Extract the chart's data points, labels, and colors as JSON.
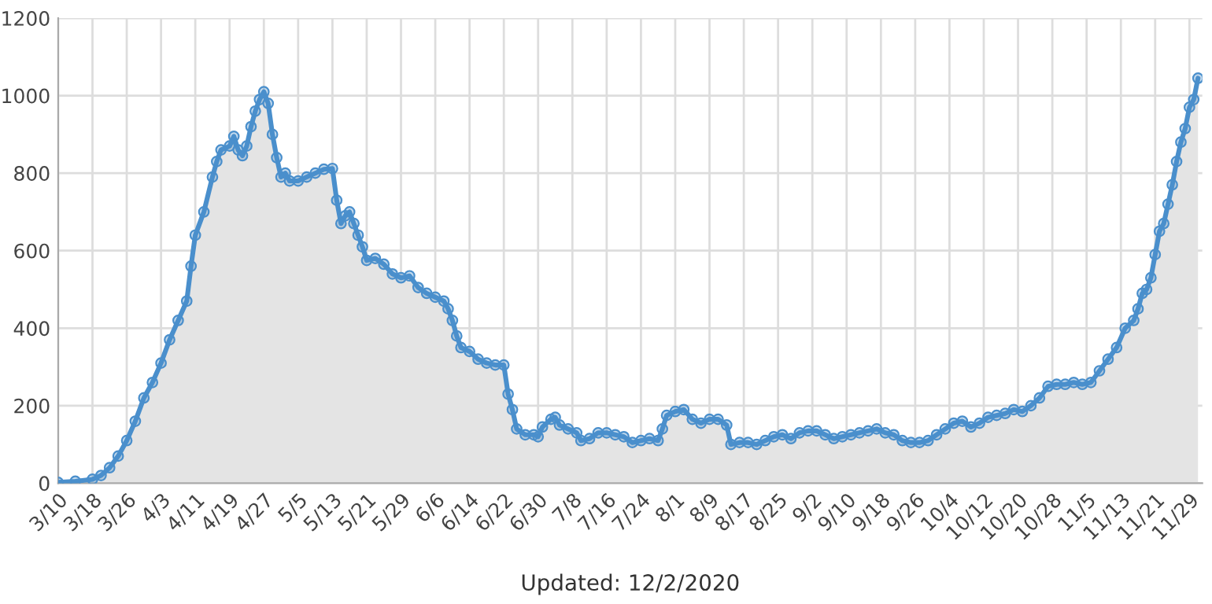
{
  "chart_data": {
    "type": "area",
    "x": [
      "2020-03-10",
      "2020-03-14",
      "2020-03-18",
      "2020-03-20",
      "2020-03-22",
      "2020-03-24",
      "2020-03-26",
      "2020-03-28",
      "2020-03-30",
      "2020-04-01",
      "2020-04-03",
      "2020-04-05",
      "2020-04-07",
      "2020-04-09",
      "2020-04-10",
      "2020-04-11",
      "2020-04-13",
      "2020-04-15",
      "2020-04-16",
      "2020-04-17",
      "2020-04-19",
      "2020-04-20",
      "2020-04-21",
      "2020-04-22",
      "2020-04-23",
      "2020-04-24",
      "2020-04-25",
      "2020-04-26",
      "2020-04-27",
      "2020-04-28",
      "2020-04-29",
      "2020-04-30",
      "2020-05-01",
      "2020-05-02",
      "2020-05-03",
      "2020-05-05",
      "2020-05-07",
      "2020-05-09",
      "2020-05-11",
      "2020-05-13",
      "2020-05-14",
      "2020-05-15",
      "2020-05-16",
      "2020-05-17",
      "2020-05-18",
      "2020-05-19",
      "2020-05-20",
      "2020-05-21",
      "2020-05-23",
      "2020-05-25",
      "2020-05-27",
      "2020-05-29",
      "2020-05-31",
      "2020-06-02",
      "2020-06-04",
      "2020-06-06",
      "2020-06-08",
      "2020-06-09",
      "2020-06-10",
      "2020-06-11",
      "2020-06-12",
      "2020-06-14",
      "2020-06-16",
      "2020-06-18",
      "2020-06-20",
      "2020-06-22",
      "2020-06-23",
      "2020-06-24",
      "2020-06-25",
      "2020-06-27",
      "2020-06-29",
      "2020-06-30",
      "2020-07-01",
      "2020-07-03",
      "2020-07-04",
      "2020-07-05",
      "2020-07-07",
      "2020-07-09",
      "2020-07-10",
      "2020-07-12",
      "2020-07-14",
      "2020-07-16",
      "2020-07-18",
      "2020-07-20",
      "2020-07-22",
      "2020-07-24",
      "2020-07-26",
      "2020-07-28",
      "2020-07-29",
      "2020-07-30",
      "2020-08-01",
      "2020-08-03",
      "2020-08-05",
      "2020-08-07",
      "2020-08-09",
      "2020-08-11",
      "2020-08-13",
      "2020-08-14",
      "2020-08-16",
      "2020-08-18",
      "2020-08-20",
      "2020-08-22",
      "2020-08-24",
      "2020-08-26",
      "2020-08-28",
      "2020-08-30",
      "2020-09-01",
      "2020-09-03",
      "2020-09-05",
      "2020-09-07",
      "2020-09-09",
      "2020-09-11",
      "2020-09-13",
      "2020-09-15",
      "2020-09-17",
      "2020-09-19",
      "2020-09-21",
      "2020-09-23",
      "2020-09-25",
      "2020-09-27",
      "2020-09-29",
      "2020-10-01",
      "2020-10-03",
      "2020-10-05",
      "2020-10-07",
      "2020-10-09",
      "2020-10-11",
      "2020-10-13",
      "2020-10-15",
      "2020-10-17",
      "2020-10-19",
      "2020-10-21",
      "2020-10-23",
      "2020-10-25",
      "2020-10-27",
      "2020-10-29",
      "2020-10-31",
      "2020-11-02",
      "2020-11-04",
      "2020-11-06",
      "2020-11-08",
      "2020-11-10",
      "2020-11-12",
      "2020-11-14",
      "2020-11-16",
      "2020-11-17",
      "2020-11-18",
      "2020-11-19",
      "2020-11-20",
      "2020-11-21",
      "2020-11-22",
      "2020-11-23",
      "2020-11-24",
      "2020-11-25",
      "2020-11-26",
      "2020-11-27",
      "2020-11-28",
      "2020-11-29",
      "2020-11-30",
      "2020-12-01"
    ],
    "series": [
      {
        "color": "#4a8fcc",
        "values": [
          2,
          5,
          10,
          20,
          40,
          70,
          110,
          160,
          220,
          260,
          310,
          370,
          420,
          470,
          560,
          640,
          700,
          790,
          830,
          860,
          870,
          895,
          860,
          845,
          870,
          920,
          960,
          990,
          1010,
          980,
          900,
          840,
          790,
          800,
          780,
          780,
          790,
          800,
          810,
          812,
          730,
          670,
          690,
          700,
          670,
          640,
          610,
          575,
          580,
          565,
          540,
          530,
          535,
          505,
          490,
          480,
          470,
          450,
          420,
          380,
          350,
          340,
          320,
          310,
          305,
          305,
          230,
          190,
          140,
          125,
          125,
          120,
          145,
          165,
          170,
          150,
          140,
          130,
          110,
          115,
          130,
          130,
          125,
          120,
          105,
          110,
          115,
          110,
          140,
          175,
          185,
          190,
          165,
          155,
          165,
          165,
          150,
          100,
          105,
          105,
          100,
          110,
          120,
          125,
          115,
          130,
          135,
          135,
          125,
          115,
          120,
          125,
          130,
          135,
          140,
          130,
          125,
          110,
          105,
          105,
          110,
          125,
          140,
          155,
          160,
          145,
          155,
          170,
          175,
          180,
          190,
          185,
          200,
          220,
          250,
          255,
          255,
          260,
          255,
          260,
          290,
          320,
          350,
          400,
          420,
          450,
          490,
          500,
          530,
          590,
          650,
          670,
          720,
          770,
          830,
          880,
          915,
          970,
          990,
          1045
        ]
      }
    ],
    "xlim": [
      "2020-03-10",
      "2020-12-02"
    ],
    "xticks": [
      {
        "value": "2020-03-10",
        "label": "3/10"
      },
      {
        "value": "2020-03-18",
        "label": "3/18"
      },
      {
        "value": "2020-03-26",
        "label": "3/26"
      },
      {
        "value": "2020-04-03",
        "label": "4/3"
      },
      {
        "value": "2020-04-11",
        "label": "4/11"
      },
      {
        "value": "2020-04-19",
        "label": "4/19"
      },
      {
        "value": "2020-04-27",
        "label": "4/27"
      },
      {
        "value": "2020-05-05",
        "label": "5/5"
      },
      {
        "value": "2020-05-13",
        "label": "5/13"
      },
      {
        "value": "2020-05-21",
        "label": "5/21"
      },
      {
        "value": "2020-05-29",
        "label": "5/29"
      },
      {
        "value": "2020-06-06",
        "label": "6/6"
      },
      {
        "value": "2020-06-14",
        "label": "6/14"
      },
      {
        "value": "2020-06-22",
        "label": "6/22"
      },
      {
        "value": "2020-06-30",
        "label": "6/30"
      },
      {
        "value": "2020-07-08",
        "label": "7/8"
      },
      {
        "value": "2020-07-16",
        "label": "7/16"
      },
      {
        "value": "2020-07-24",
        "label": "7/24"
      },
      {
        "value": "2020-08-01",
        "label": "8/1"
      },
      {
        "value": "2020-08-09",
        "label": "8/9"
      },
      {
        "value": "2020-08-17",
        "label": "8/17"
      },
      {
        "value": "2020-08-25",
        "label": "8/25"
      },
      {
        "value": "2020-09-02",
        "label": "9/2"
      },
      {
        "value": "2020-09-10",
        "label": "9/10"
      },
      {
        "value": "2020-09-18",
        "label": "9/18"
      },
      {
        "value": "2020-09-26",
        "label": "9/26"
      },
      {
        "value": "2020-10-04",
        "label": "10/4"
      },
      {
        "value": "2020-10-12",
        "label": "10/12"
      },
      {
        "value": "2020-10-20",
        "label": "10/20"
      },
      {
        "value": "2020-10-28",
        "label": "10/28"
      },
      {
        "value": "2020-11-05",
        "label": "11/5"
      },
      {
        "value": "2020-11-13",
        "label": "11/13"
      },
      {
        "value": "2020-11-21",
        "label": "11/21"
      },
      {
        "value": "2020-11-29",
        "label": "11/29"
      }
    ],
    "ylim": [
      0,
      1200
    ],
    "yticks": [
      0,
      200,
      400,
      600,
      800,
      1000,
      1200
    ],
    "grid": true,
    "marker": "circle",
    "line_style": "solid",
    "annotations": [
      "Updated: 12/2/2020"
    ]
  }
}
